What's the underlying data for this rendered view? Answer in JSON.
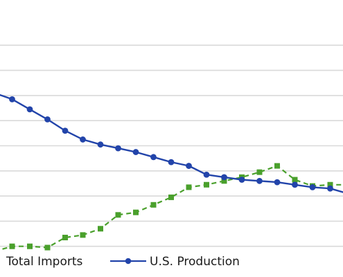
{
  "chart_data": {
    "type": "line",
    "title": "",
    "xlabel": "",
    "ylabel": "",
    "grid": true,
    "legend_position": "bottom",
    "ylim": [
      0,
      9
    ],
    "xlim": [
      0,
      20
    ],
    "yticks": [
      1,
      2,
      3,
      4,
      5,
      6,
      7,
      8,
      9
    ],
    "colors": {
      "gridline": "#d9d9d9",
      "production": "#2244aa",
      "imports": "#4aa02c"
    },
    "series": [
      {
        "name": "Total Imports",
        "line_style": "dashed",
        "marker": "square",
        "x": [
          0,
          1,
          2,
          3,
          4,
          5,
          6,
          7,
          8,
          9,
          10,
          11,
          12,
          13,
          14,
          15,
          16,
          17,
          18,
          19,
          20
        ],
        "values": [
          0.8,
          1.0,
          1.0,
          0.95,
          1.35,
          1.45,
          1.7,
          2.25,
          2.35,
          2.65,
          2.95,
          3.35,
          3.45,
          3.6,
          3.75,
          3.95,
          4.2,
          3.65,
          3.4,
          3.45,
          3.45
        ]
      },
      {
        "name": "U.S. Production",
        "line_style": "solid",
        "marker": "circle",
        "x": [
          0,
          1,
          2,
          3,
          4,
          5,
          6,
          7,
          8,
          9,
          10,
          11,
          12,
          13,
          14,
          15,
          16,
          17,
          18,
          19,
          20
        ],
        "values": [
          7.1,
          6.85,
          6.45,
          6.05,
          5.6,
          5.25,
          5.05,
          4.9,
          4.75,
          4.55,
          4.35,
          4.2,
          3.85,
          3.75,
          3.65,
          3.6,
          3.55,
          3.45,
          3.35,
          3.3,
          3.1
        ]
      }
    ]
  }
}
